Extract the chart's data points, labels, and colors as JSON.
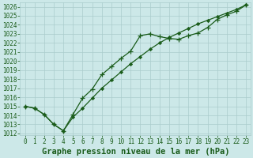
{
  "line1_x": [
    0,
    1,
    2,
    3,
    4,
    5,
    6,
    7,
    8,
    9,
    10,
    11,
    12,
    13,
    14,
    15,
    16,
    17,
    18,
    19,
    20,
    21,
    22,
    23
  ],
  "line1_y": [
    1015.0,
    1014.8,
    1014.1,
    1013.0,
    1012.3,
    1014.1,
    1015.9,
    1016.9,
    1018.5,
    1019.4,
    1020.3,
    1021.1,
    1022.8,
    1023.0,
    1022.7,
    1022.5,
    1022.4,
    1022.8,
    1023.1,
    1023.7,
    1024.6,
    1025.1,
    1025.5,
    1026.2
  ],
  "line2_x": [
    0,
    1,
    2,
    3,
    4,
    5,
    6,
    7,
    8,
    9,
    10,
    11,
    12,
    13,
    14,
    15,
    16,
    17,
    18,
    19,
    20,
    21,
    22,
    23
  ],
  "line2_y": [
    1015.0,
    1014.8,
    1014.1,
    1013.0,
    1012.3,
    1013.8,
    1014.8,
    1015.9,
    1017.0,
    1017.9,
    1018.8,
    1019.7,
    1020.5,
    1021.3,
    1022.0,
    1022.6,
    1023.1,
    1023.6,
    1024.1,
    1024.5,
    1024.9,
    1025.3,
    1025.7,
    1026.2
  ],
  "xlim_min": -0.5,
  "xlim_max": 23.5,
  "ylim_min": 1011.8,
  "ylim_max": 1026.5,
  "yticks": [
    1012,
    1013,
    1014,
    1015,
    1016,
    1017,
    1018,
    1019,
    1020,
    1021,
    1022,
    1023,
    1024,
    1025,
    1026
  ],
  "xticks": [
    0,
    1,
    2,
    3,
    4,
    5,
    6,
    7,
    8,
    9,
    10,
    11,
    12,
    13,
    14,
    15,
    16,
    17,
    18,
    19,
    20,
    21,
    22,
    23
  ],
  "xlabel": "Graphe pression niveau de la mer (hPa)",
  "bg_color": "#cce8e8",
  "grid_color": "#aacccc",
  "line_color": "#1a5c1a",
  "text_color": "#1a5c1a",
  "xlabel_fontsize": 7.5,
  "tick_fontsize": 5.5
}
